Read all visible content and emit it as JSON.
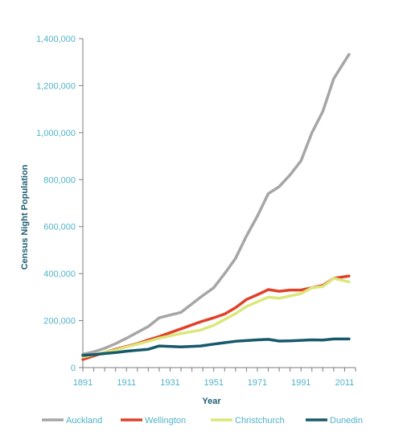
{
  "chart_data": {
    "type": "line",
    "title": "",
    "xlabel": "Year",
    "ylabel": "Census Night Population",
    "xlim": [
      1891,
      2016
    ],
    "ylim": [
      0,
      1400000
    ],
    "x_ticks": [
      1891,
      1911,
      1931,
      1951,
      1971,
      1991,
      2011
    ],
    "x_tick_labels": [
      "1891",
      "1911",
      "1931",
      "1951",
      "1971",
      "1991",
      "2011"
    ],
    "y_ticks": [
      0,
      200000,
      400000,
      600000,
      800000,
      1000000,
      1200000,
      1400000
    ],
    "y_tick_labels": [
      "0",
      "200,000",
      "400,000",
      "600,000",
      "800,000",
      "1,000,000",
      "1,200,000",
      "1,400,000"
    ],
    "grid": false,
    "legend_position": "bottom",
    "x": [
      1891,
      1896,
      1901,
      1906,
      1911,
      1916,
      1921,
      1926,
      1936,
      1945,
      1951,
      1956,
      1961,
      1966,
      1971,
      1976,
      1981,
      1986,
      1991,
      1996,
      2001,
      2006,
      2013
    ],
    "series": [
      {
        "name": "Auckland",
        "color": "#a6a6a6",
        "values": [
          57000,
          67000,
          82000,
          102000,
          125000,
          150000,
          175000,
          212000,
          235000,
          300000,
          340000,
          400000,
          465000,
          560000,
          645000,
          740000,
          770000,
          820000,
          880000,
          1000000,
          1090000,
          1230000,
          1333000
        ]
      },
      {
        "name": "Wellington",
        "color": "#e0412a",
        "values": [
          35000,
          50000,
          65000,
          78000,
          90000,
          102000,
          118000,
          132000,
          165000,
          195000,
          212000,
          228000,
          255000,
          290000,
          310000,
          332000,
          325000,
          330000,
          330000,
          340000,
          350000,
          380000,
          390000
        ]
      },
      {
        "name": "Christchurch",
        "color": "#dbe77a",
        "values": [
          45000,
          55000,
          65000,
          75000,
          88000,
          100000,
          112000,
          125000,
          145000,
          160000,
          180000,
          205000,
          230000,
          260000,
          280000,
          300000,
          295000,
          305000,
          315000,
          340000,
          345000,
          380000,
          365000
        ]
      },
      {
        "name": "Dunedin",
        "color": "#17596b",
        "values": [
          52000,
          55000,
          60000,
          64000,
          70000,
          74000,
          78000,
          92000,
          88000,
          92000,
          100000,
          106000,
          112000,
          115000,
          118000,
          120000,
          113000,
          114000,
          116000,
          118000,
          117000,
          122000,
          122000
        ]
      }
    ]
  }
}
